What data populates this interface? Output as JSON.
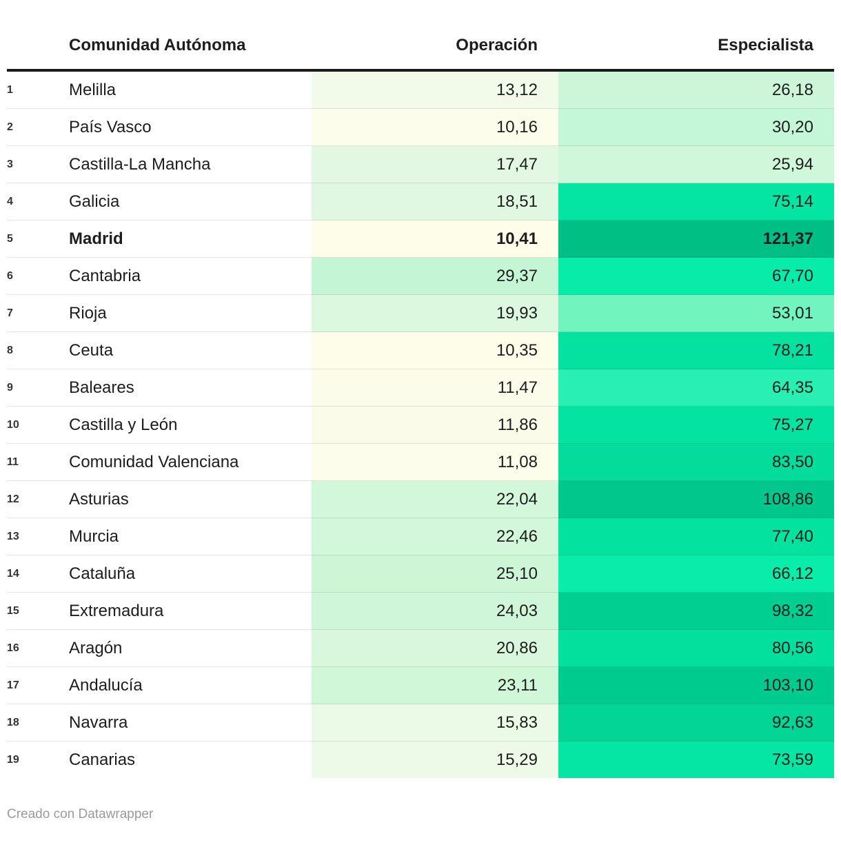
{
  "table": {
    "columns": {
      "rank": "",
      "name": "Comunidad Autónoma",
      "operacion": "Operación",
      "especialista": "Especialista"
    },
    "rows": [
      {
        "rank": "1",
        "name": "Melilla",
        "operacion": "13,12",
        "especialista": "26,18",
        "op_color": "#f2fbe9",
        "esp_color": "#cdf6d9",
        "bold": false
      },
      {
        "rank": "2",
        "name": "País Vasco",
        "operacion": "10,16",
        "especialista": "30,20",
        "op_color": "#fdfdeb",
        "esp_color": "#c4f7d7",
        "bold": false
      },
      {
        "rank": "3",
        "name": "Castilla-La Mancha",
        "operacion": "17,47",
        "especialista": "25,94",
        "op_color": "#e3f8e3",
        "esp_color": "#cff7da",
        "bold": false
      },
      {
        "rank": "4",
        "name": "Galicia",
        "operacion": "18,51",
        "especialista": "75,14",
        "op_color": "#e0f8e2",
        "esp_color": "#04e4a2",
        "bold": false
      },
      {
        "rank": "5",
        "name": "Madrid",
        "operacion": "10,41",
        "especialista": "121,37",
        "op_color": "#fdfdea",
        "esp_color": "#00bf85",
        "bold": true
      },
      {
        "rank": "6",
        "name": "Cantabria",
        "operacion": "29,37",
        "especialista": "67,70",
        "op_color": "#c4f5d4",
        "esp_color": "#08ecaa",
        "bold": false
      },
      {
        "rank": "7",
        "name": "Rioja",
        "operacion": "19,93",
        "especialista": "53,01",
        "op_color": "#dcf8df",
        "esp_color": "#72f4bf",
        "bold": false
      },
      {
        "rank": "8",
        "name": "Ceuta",
        "operacion": "10,35",
        "especialista": "78,21",
        "op_color": "#fdfdea",
        "esp_color": "#04e1a0",
        "bold": false
      },
      {
        "rank": "9",
        "name": "Baleares",
        "operacion": "11,47",
        "especialista": "64,35",
        "op_color": "#fbfce9",
        "esp_color": "#27f0b2",
        "bold": false
      },
      {
        "rank": "10",
        "name": "Castilla y León",
        "operacion": "11,86",
        "especialista": "75,27",
        "op_color": "#fafce9",
        "esp_color": "#04e3a1",
        "bold": false
      },
      {
        "rank": "11",
        "name": "Comunidad Valenciana",
        "operacion": "11,08",
        "especialista": "83,50",
        "op_color": "#fcfdea",
        "esp_color": "#03dc9b",
        "bold": false
      },
      {
        "rank": "12",
        "name": "Asturias",
        "operacion": "22,04",
        "especialista": "108,86",
        "op_color": "#d3f7da",
        "esp_color": "#00c78b",
        "bold": false
      },
      {
        "rank": "13",
        "name": "Murcia",
        "operacion": "22,46",
        "especialista": "77,40",
        "op_color": "#d2f7da",
        "esp_color": "#04e2a0",
        "bold": false
      },
      {
        "rank": "14",
        "name": "Cataluña",
        "operacion": "25,10",
        "especialista": "66,12",
        "op_color": "#cdf6d7",
        "esp_color": "#09edab",
        "bold": false
      },
      {
        "rank": "15",
        "name": "Extremadura",
        "operacion": "24,03",
        "especialista": "98,32",
        "op_color": "#cff6d8",
        "esp_color": "#01cf92",
        "bold": false
      },
      {
        "rank": "16",
        "name": "Aragón",
        "operacion": "20,86",
        "especialista": "80,56",
        "op_color": "#d8f7dd",
        "esp_color": "#03df9d",
        "bold": false
      },
      {
        "rank": "17",
        "name": "Andalucía",
        "operacion": "23,11",
        "especialista": "103,10",
        "op_color": "#d1f7d9",
        "esp_color": "#00cb8e",
        "bold": false
      },
      {
        "rank": "18",
        "name": "Navarra",
        "operacion": "15,83",
        "especialista": "92,63",
        "op_color": "#eafae6",
        "esp_color": "#02d595",
        "bold": false
      },
      {
        "rank": "19",
        "name": "Canarias",
        "operacion": "15,29",
        "especialista": "73,59",
        "op_color": "#ecfae7",
        "esp_color": "#05e5a3",
        "bold": false
      }
    ]
  },
  "footer": {
    "credit": "Creado con Datawrapper"
  },
  "colors": {
    "header_border": "#1a1a1a",
    "text": "#1d1d1d",
    "rank_text": "#333333",
    "row_divider": "rgba(0,0,0,0.10)",
    "credit_text": "#9b9b9b",
    "scale_low": "#fdfdea",
    "scale_high": "#00bf85"
  },
  "chart_data": {
    "type": "heatmap",
    "title": "",
    "columns": [
      "Comunidad Autónoma",
      "Operación",
      "Especialista"
    ],
    "categories": [
      "Melilla",
      "País Vasco",
      "Castilla-La Mancha",
      "Galicia",
      "Madrid",
      "Cantabria",
      "Rioja",
      "Ceuta",
      "Baleares",
      "Castilla y León",
      "Comunidad Valenciana",
      "Asturias",
      "Murcia",
      "Cataluña",
      "Extremadura",
      "Aragón",
      "Andalucía",
      "Navarra",
      "Canarias"
    ],
    "series": [
      {
        "name": "Operación",
        "values": [
          13.12,
          10.16,
          17.47,
          18.51,
          10.41,
          29.37,
          19.93,
          10.35,
          11.47,
          11.86,
          11.08,
          22.04,
          22.46,
          25.1,
          24.03,
          20.86,
          23.11,
          15.83,
          15.29
        ]
      },
      {
        "name": "Especialista",
        "values": [
          26.18,
          30.2,
          25.94,
          75.14,
          121.37,
          67.7,
          53.01,
          78.21,
          64.35,
          75.27,
          83.5,
          108.86,
          77.4,
          66.12,
          98.32,
          80.56,
          103.1,
          92.63,
          73.59
        ]
      }
    ],
    "highlighted_row": "Madrid",
    "color_scale": {
      "low_color": "#fdfdea",
      "high_color": "#00bf85",
      "domain": [
        10.16,
        121.37
      ]
    },
    "decimal_separator": ",",
    "credit": "Creado con Datawrapper"
  }
}
